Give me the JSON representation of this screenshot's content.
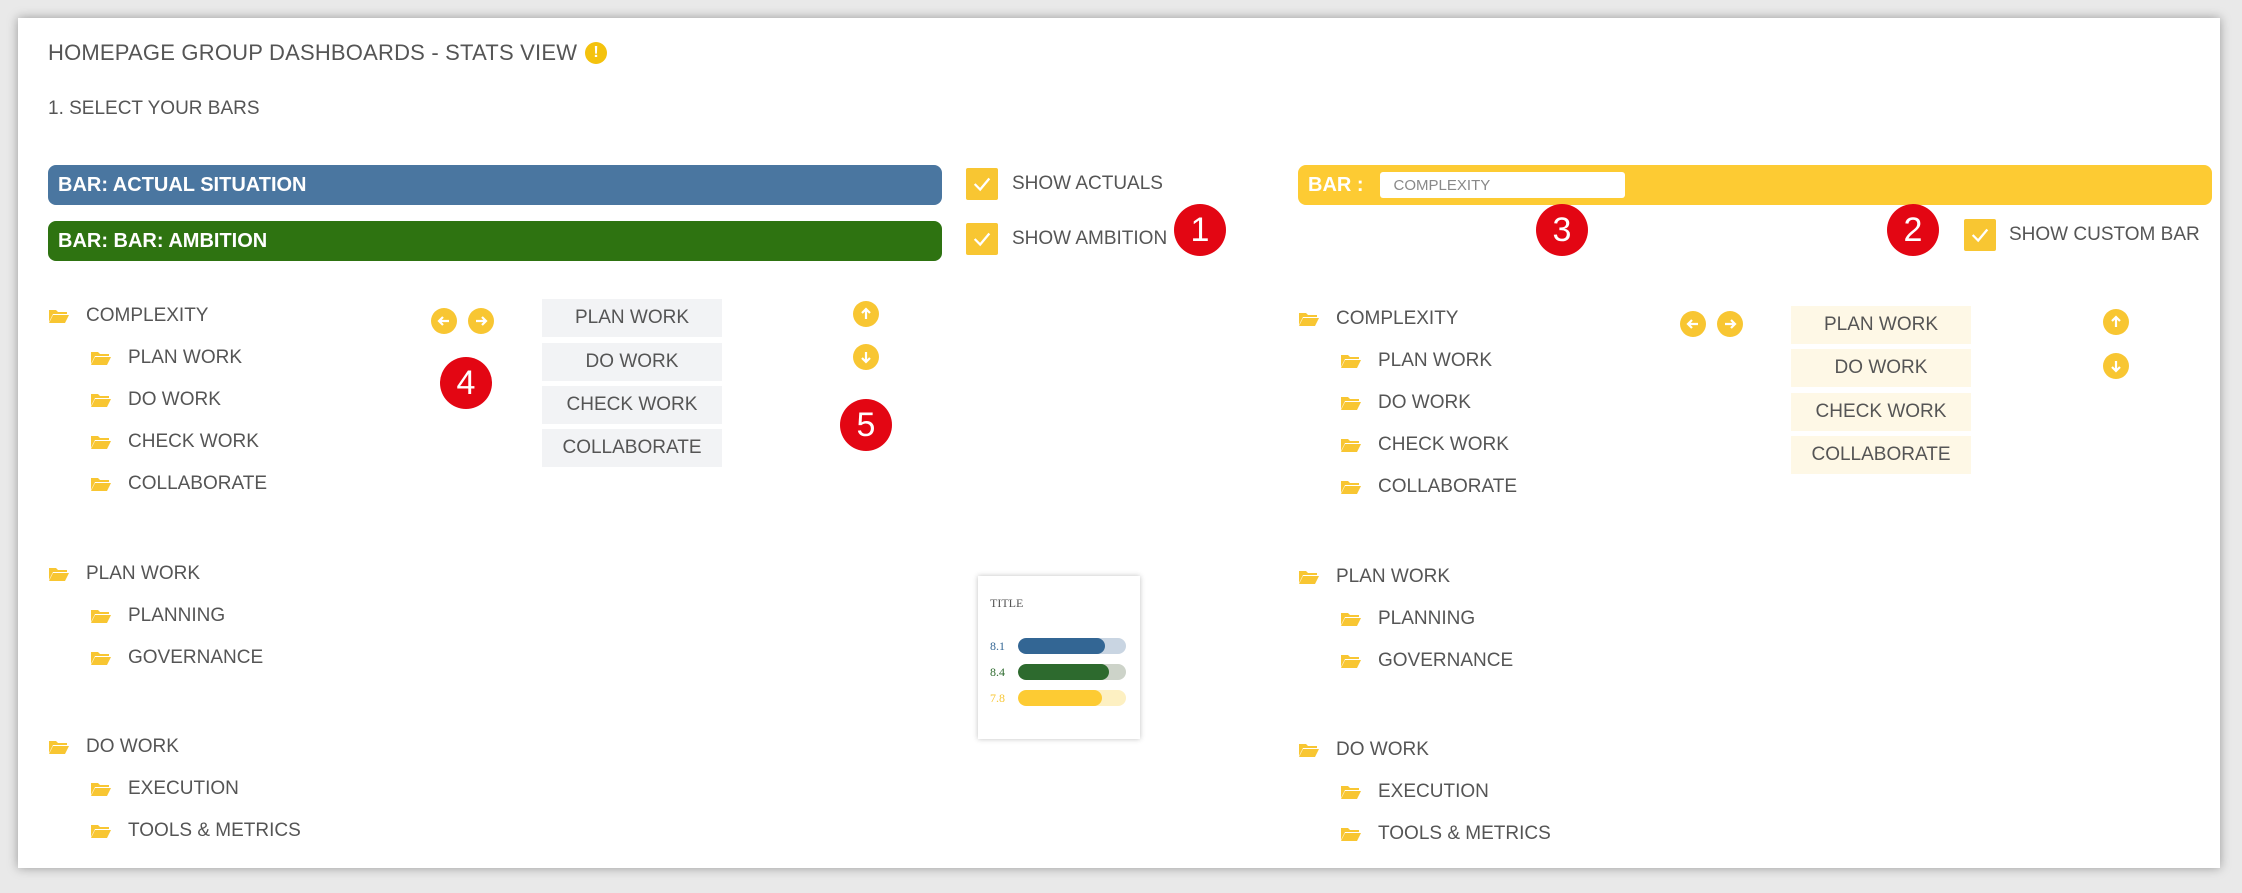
{
  "page": {
    "title": "HOMEPAGE GROUP DASHBOARDS - STATS VIEW",
    "subtitle": "1. SELECT YOUR BARS"
  },
  "bars": {
    "actual_label": "BAR: ACTUAL SITUATION",
    "ambition_label": "BAR: BAR: AMBITION",
    "custom_label": "BAR :",
    "custom_value": "COMPLEXITY"
  },
  "checkboxes": {
    "show_actuals": "SHOW ACTUALS",
    "show_ambition": "SHOW AMBITION",
    "show_custom": "SHOW CUSTOM BAR"
  },
  "badges": [
    "1",
    "2",
    "3",
    "4",
    "5"
  ],
  "tree": [
    {
      "label": "COMPLEXITY",
      "children": [
        "PLAN WORK",
        "DO WORK",
        "CHECK WORK",
        "COLLABORATE"
      ]
    },
    {
      "label": "PLAN WORK",
      "children": [
        "PLANNING",
        "GOVERNANCE"
      ]
    },
    {
      "label": "DO WORK",
      "children": [
        "EXECUTION",
        "TOOLS & METRICS"
      ]
    }
  ],
  "selected_list": [
    "PLAN WORK",
    "DO WORK",
    "CHECK WORK",
    "COLLABORATE"
  ],
  "preview": {
    "title": "TITLE",
    "rows": [
      {
        "value": "8.1",
        "level": 0.81,
        "color": "#336694",
        "track": "#c9d5e2"
      },
      {
        "value": "8.4",
        "level": 0.84,
        "color": "#2d6a2e",
        "track": "#cdd3c9"
      },
      {
        "value": "7.8",
        "level": 0.78,
        "color": "#fdcb33",
        "track": "#fdf0c2"
      }
    ]
  },
  "colors": {
    "accent": "#f8c632",
    "actual": "#4a76a0",
    "ambition": "#2e7311",
    "custom": "#fdcb33",
    "badge": "#e30613"
  },
  "icons": [
    "warning-icon",
    "check-icon",
    "folder-icon",
    "arrow-left-icon",
    "arrow-right-icon",
    "arrow-up-icon",
    "arrow-down-icon"
  ]
}
